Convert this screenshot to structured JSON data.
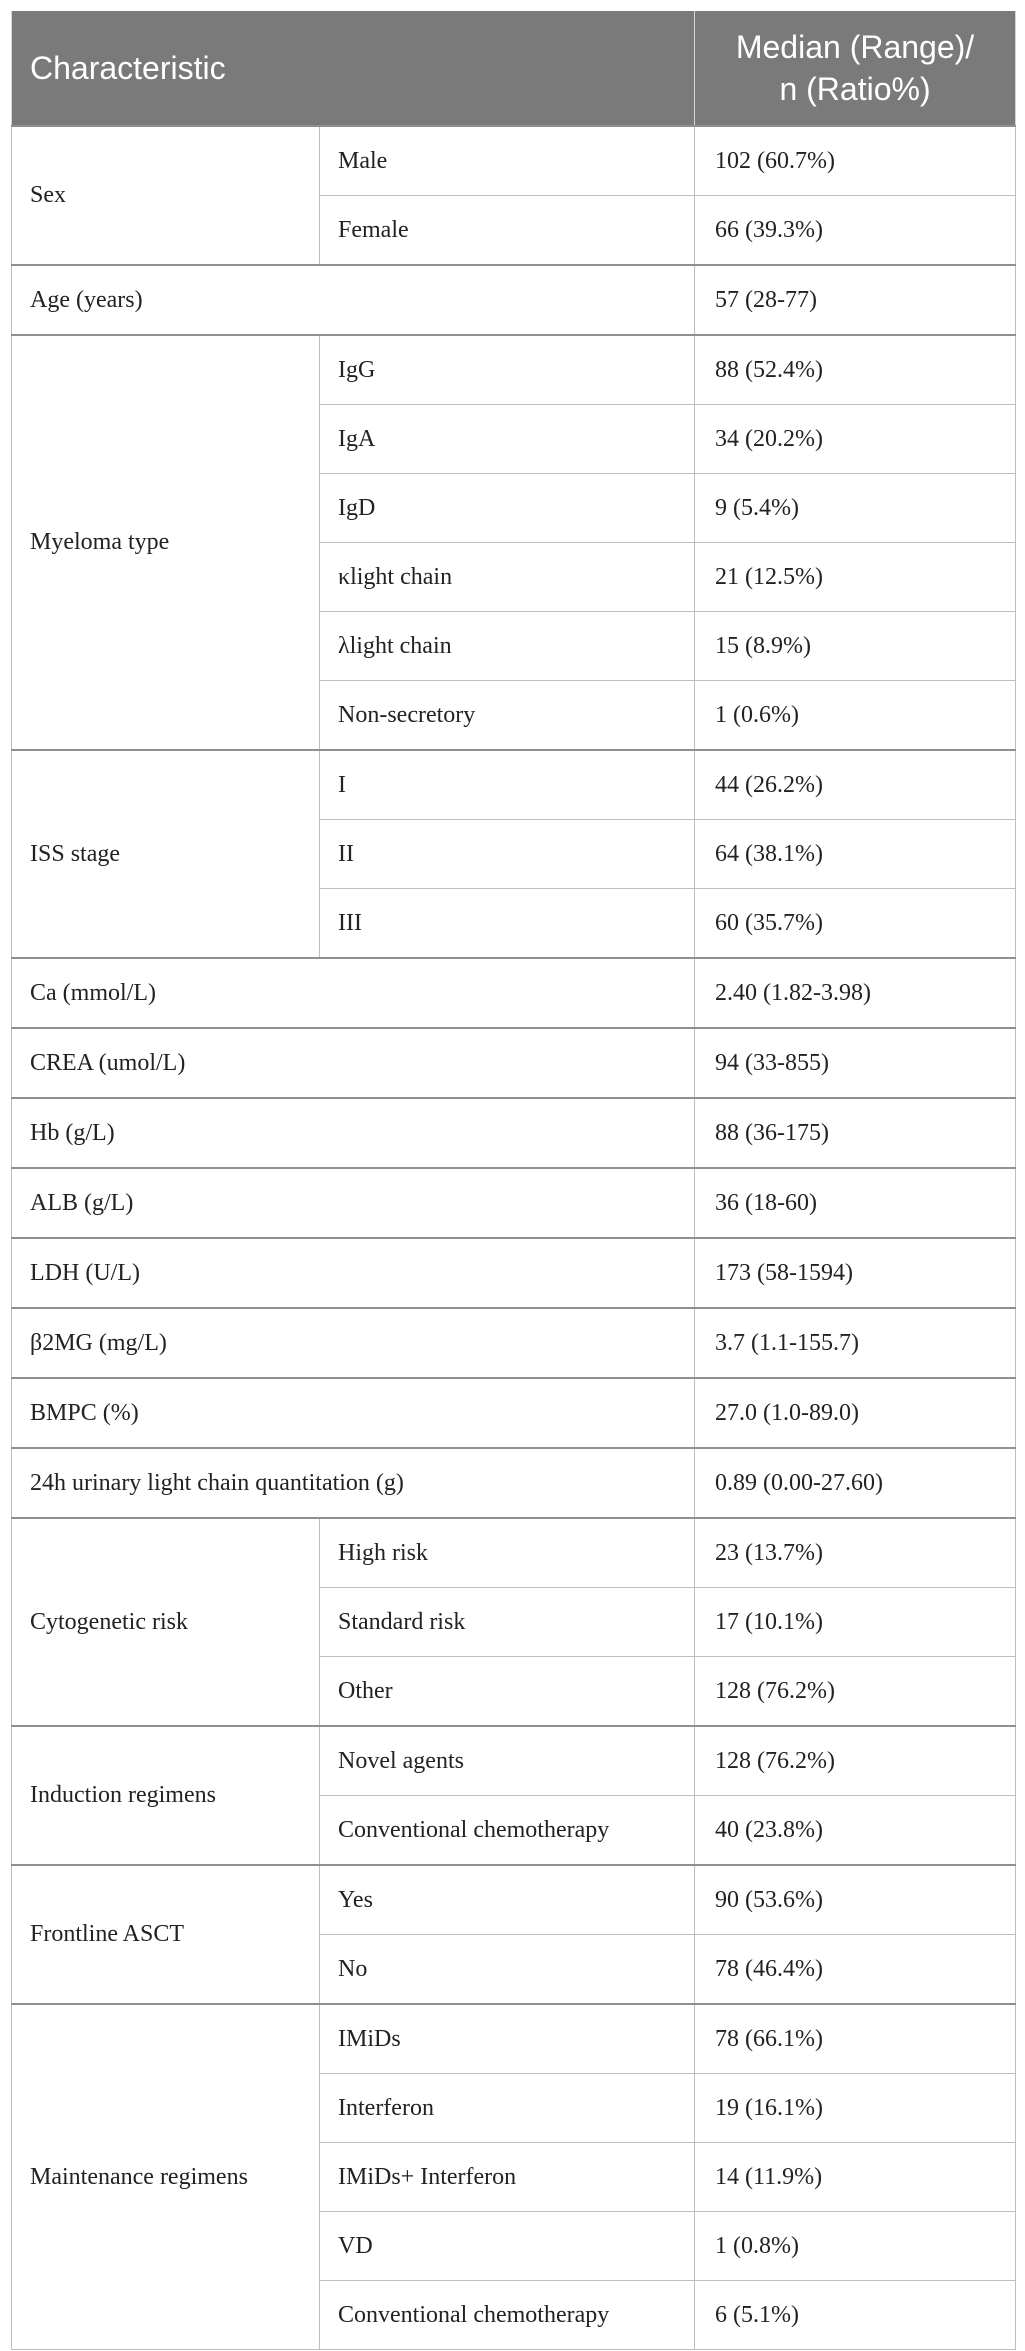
{
  "header": {
    "characteristic": "Characteristic",
    "value_line1": "Median (Range)/",
    "value_line2": "n (Ratio%)"
  },
  "groups": [
    {
      "label": "Sex",
      "rows": [
        {
          "sub": "Male",
          "value": "102 (60.7%)"
        },
        {
          "sub": "Female",
          "value": "66 (39.3%)"
        }
      ]
    },
    {
      "label": "Age (years)",
      "value": "57 (28-77)"
    },
    {
      "label": "Myeloma type",
      "rows": [
        {
          "sub": "IgG",
          "value": "88 (52.4%)"
        },
        {
          "sub": "IgA",
          "value": "34 (20.2%)"
        },
        {
          "sub": "IgD",
          "value": "9 (5.4%)"
        },
        {
          "sub": "κlight chain",
          "value": "21 (12.5%)"
        },
        {
          "sub": "λlight chain",
          "value": "15 (8.9%)"
        },
        {
          "sub": "Non-secretory",
          "value": "1 (0.6%)"
        }
      ]
    },
    {
      "label": "ISS stage",
      "rows": [
        {
          "sub": "I",
          "value": "44 (26.2%)"
        },
        {
          "sub": "II",
          "value": "64 (38.1%)"
        },
        {
          "sub": "III",
          "value": "60 (35.7%)"
        }
      ]
    },
    {
      "label": "Ca (mmol/L)",
      "value": "2.40 (1.82-3.98)"
    },
    {
      "label": "CREA (umol/L)",
      "value": "94 (33-855)"
    },
    {
      "label": "Hb (g/L)",
      "value": "88 (36-175)"
    },
    {
      "label": "ALB (g/L)",
      "value": "36 (18-60)"
    },
    {
      "label": "LDH (U/L)",
      "value": "173 (58-1594)"
    },
    {
      "label": "β2MG (mg/L)",
      "value": "3.7 (1.1-155.7)"
    },
    {
      "label": "BMPC (%)",
      "value": "27.0 (1.0-89.0)"
    },
    {
      "label": "24h urinary light chain quantitation (g)",
      "value": "0.89 (0.00-27.60)"
    },
    {
      "label": "Cytogenetic risk",
      "rows": [
        {
          "sub": "High risk",
          "value": "23 (13.7%)"
        },
        {
          "sub": "Standard risk",
          "value": "17 (10.1%)"
        },
        {
          "sub": "Other",
          "value": "128 (76.2%)"
        }
      ]
    },
    {
      "label": "Induction regimens",
      "rows": [
        {
          "sub": "Novel agents",
          "value": "128 (76.2%)"
        },
        {
          "sub": "Conventional chemotherapy",
          "value": "40 (23.8%)"
        }
      ]
    },
    {
      "label": "Frontline ASCT",
      "rows": [
        {
          "sub": "Yes",
          "value": "90 (53.6%)"
        },
        {
          "sub": "No",
          "value": "78 (46.4%)"
        }
      ]
    },
    {
      "label": "Maintenance regimens",
      "rows": [
        {
          "sub": "IMiDs",
          "value": "78 (66.1%)"
        },
        {
          "sub": "Interferon",
          "value": "19 (16.1%)"
        },
        {
          "sub": "IMiDs+ Interferon",
          "value": "14 (11.9%)"
        },
        {
          "sub": "VD",
          "value": "1 (0.8%)"
        },
        {
          "sub": "Conventional chemotherapy",
          "value": "6 (5.1%)"
        }
      ]
    }
  ]
}
